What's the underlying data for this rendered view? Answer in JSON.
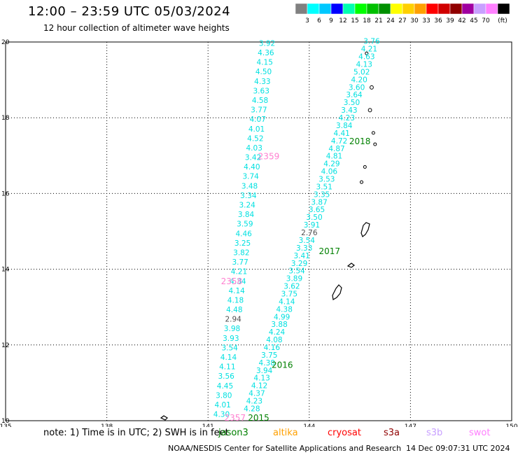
{
  "header": {
    "title": "12:00 – 23:59 UTC 05/03/2024",
    "subtitle": "12 hour collection of altimeter wave heights"
  },
  "colorbar": {
    "unit": "(ft)",
    "bins": [
      {
        "color": "#808080",
        "label": ""
      },
      {
        "color": "#00ffff",
        "label": "3"
      },
      {
        "color": "#00c8ff",
        "label": "6"
      },
      {
        "color": "#0000ff",
        "label": "9"
      },
      {
        "color": "#00ffb0",
        "label": "12"
      },
      {
        "color": "#00ff00",
        "label": "15"
      },
      {
        "color": "#00c000",
        "label": "18"
      },
      {
        "color": "#009000",
        "label": "21"
      },
      {
        "color": "#ffff00",
        "label": "24"
      },
      {
        "color": "#ffd000",
        "label": "27"
      },
      {
        "color": "#ffa000",
        "label": "30"
      },
      {
        "color": "#ff0000",
        "label": "33"
      },
      {
        "color": "#d00000",
        "label": "36"
      },
      {
        "color": "#900000",
        "label": "39"
      },
      {
        "color": "#a000a0",
        "label": "42"
      },
      {
        "color": "#c8a0ff",
        "label": "45"
      },
      {
        "color": "#ff80ff",
        "label": "70"
      },
      {
        "color": "#000000",
        "label": ""
      }
    ]
  },
  "map": {
    "lon_range": [
      135,
      150
    ],
    "lat_range": [
      10,
      20
    ],
    "lon_ticks": [
      "135",
      "138",
      "141",
      "144",
      "147",
      "150"
    ],
    "lat_ticks": [
      "20",
      "18",
      "16",
      "14",
      "12",
      "10"
    ],
    "track_west": {
      "color": "#00e0e0",
      "values": [
        "3.92",
        "4.36",
        "4.15",
        "4.50",
        "4.33",
        "3.63",
        "4.58",
        "3.77",
        "4.07",
        "4.01",
        "4.52",
        "4.03",
        "3.42",
        "4.40",
        "3.74",
        "3.48",
        "3.34",
        "3.24",
        "3.84",
        "3.59",
        "4.46",
        "3.25",
        "3.82",
        "3.77",
        "4.21",
        "4.34",
        "4.14",
        "4.18",
        "4.48",
        "2.94",
        "3.98",
        "3.93",
        "3.54",
        "4.14",
        "4.11",
        "3.56",
        "4.45",
        "3.80",
        "4.01",
        "4.30"
      ],
      "gray_values": [
        "2.94"
      ],
      "time_labels": [
        {
          "text": "2359",
          "lon": 142.8,
          "lat": 16.9
        },
        {
          "text": "2358",
          "lon": 141.7,
          "lat": 13.6
        },
        {
          "text": "2357",
          "lon": 141.8,
          "lat": 10.0
        }
      ]
    },
    "track_east": {
      "color": "#00e0e0",
      "values": [
        "3.76",
        "4.21",
        "4.63",
        "4.13",
        "5.02",
        "4.20",
        "3.60",
        "3.64",
        "3.50",
        "3.43",
        "4.23",
        "3.84",
        "4.41",
        "4.72",
        "4.87",
        "4.81",
        "4.29",
        "4.06",
        "3.53",
        "3.51",
        "3.35",
        "3.87",
        "3.65",
        "3.50",
        "3.91",
        "2.76",
        "3.54",
        "3.33",
        "3.41",
        "3.29",
        "3.54",
        "3.89",
        "3.62",
        "3.75",
        "4.14",
        "4.38",
        "4.99",
        "3.88",
        "4.24",
        "4.08",
        "4.16",
        "3.75",
        "4.38",
        "3.94",
        "4.13",
        "4.12",
        "4.37",
        "4.23",
        "4.28"
      ],
      "gray_values": [
        "2.76"
      ],
      "time_labels": [
        {
          "text": "2018",
          "lon": 145.5,
          "lat": 17.3
        },
        {
          "text": "2017",
          "lon": 144.6,
          "lat": 14.4
        },
        {
          "text": "2016",
          "lon": 143.2,
          "lat": 11.4
        },
        {
          "text": "2015",
          "lon": 142.5,
          "lat": 10.0
        }
      ]
    }
  },
  "footer": {
    "note": "note:  1) Time is in UTC;  2) SWH is in feet",
    "satellites": [
      {
        "name": "jason3",
        "color": "#008000"
      },
      {
        "name": "altika",
        "color": "#ffa000"
      },
      {
        "name": "cryosat",
        "color": "#ff0000"
      },
      {
        "name": "s3a",
        "color": "#900000"
      },
      {
        "name": "s3b",
        "color": "#c8a0ff"
      },
      {
        "name": "swot",
        "color": "#ff80ff"
      }
    ],
    "credit": "NOAA/NESDIS Center for Satellite Applications and Research",
    "timestamp": "14 Dec 09:07:31 UTC 2024"
  }
}
